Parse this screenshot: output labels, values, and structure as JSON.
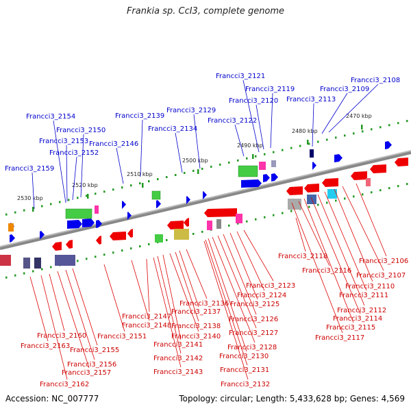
{
  "title": "Frankia sp. CcI3, complete genome",
  "accession": "Accession: NC_007777",
  "summary": "Topology: circular; Length: 5,433,628 bp; Genes: 4,569",
  "colors": {
    "forward": "#0000ee",
    "reverse": "#ee0000",
    "axis": "#888888",
    "tick": "#229922"
  },
  "scale_marks": [
    {
      "label": "2530 kbp"
    },
    {
      "label": "2520 kbp"
    },
    {
      "label": "2510 kbp"
    },
    {
      "label": "2500 kbp"
    },
    {
      "label": "2490 kbp"
    },
    {
      "label": "2480 kbp"
    },
    {
      "label": "2470 kbp"
    }
  ],
  "forward_genes": [
    "Francci3_2108",
    "Francci3_2109",
    "Francci3_2113",
    "Francci3_2119",
    "Francci3_2120",
    "Francci3_2121",
    "Francci3_2122",
    "Francci3_2129",
    "Francci3_2134",
    "Francci3_2139",
    "Francci3_2146",
    "Francci3_2150",
    "Francci3_2152",
    "Francci3_2153",
    "Francci3_2154",
    "Francci3_2159"
  ],
  "reverse_genes": [
    "Francci3_2106",
    "Francci3_2107",
    "Francci3_2110",
    "Francci3_2111",
    "Francci3_2112",
    "Francci3_2114",
    "Francci3_2115",
    "Francci3_2116",
    "Francci3_2117",
    "Francci3_2118",
    "Francci3_2123",
    "Francci3_2124",
    "Francci3_2125",
    "Francci3_2126",
    "Francci3_2127",
    "Francci3_2128",
    "Francci3_2130",
    "Francci3_2131",
    "Francci3_2132",
    "Francci3_2136",
    "Francci3_2137",
    "Francci3_2138",
    "Francci3_2140",
    "Francci3_2141",
    "Francci3_2142",
    "Francci3_2143",
    "Francci3_2147",
    "Francci3_2148",
    "Francci3_2151",
    "Francci3_2155",
    "Francci3_2156",
    "Francci3_2157",
    "Francci3_2160",
    "Francci3_2162",
    "Francci3_2163"
  ]
}
